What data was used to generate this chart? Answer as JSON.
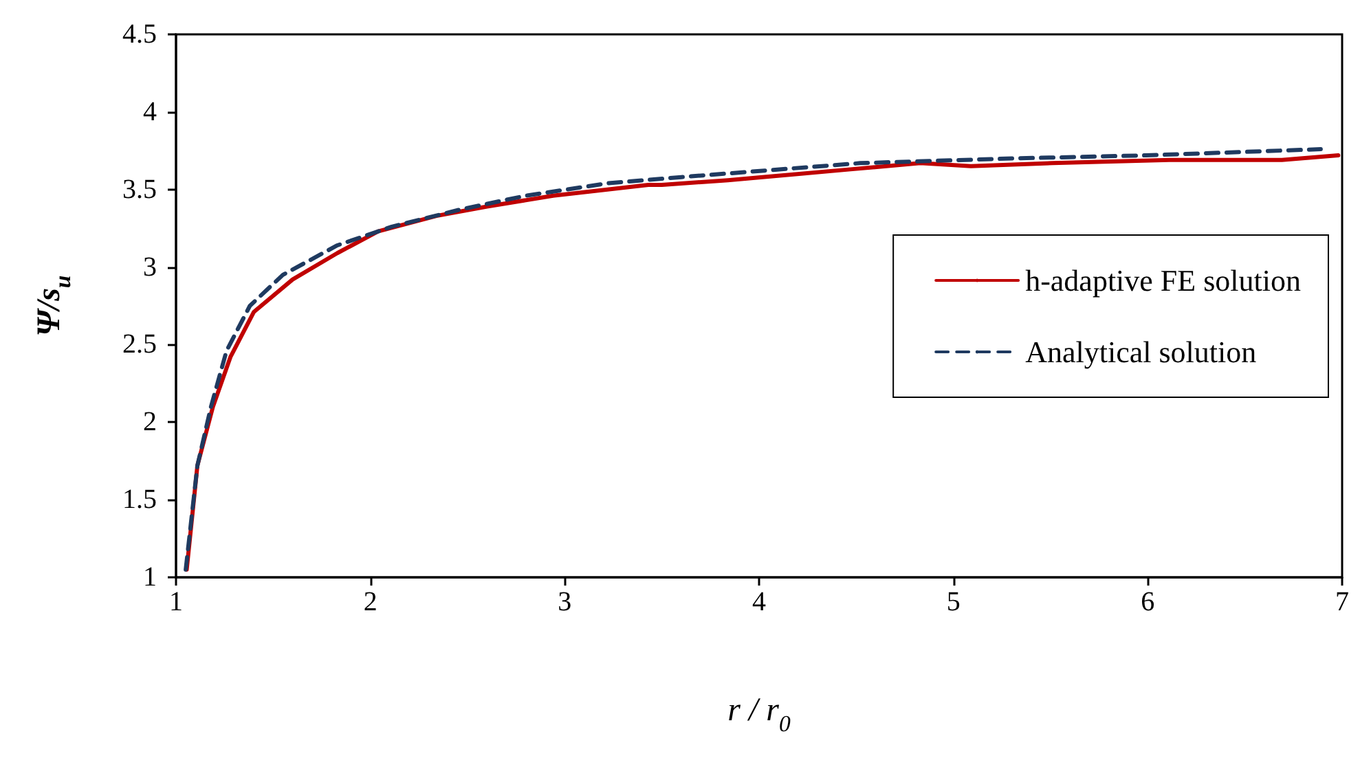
{
  "chart_data": {
    "type": "line",
    "xlabel": "r / r$_{0}$",
    "ylabel": "Ψ/s$_{u}$",
    "xlim": [
      1,
      7
    ],
    "xticks": [
      1,
      2,
      3,
      4,
      5,
      6,
      7
    ],
    "ylim": [
      1,
      4.5
    ],
    "yticks": [
      1,
      1.5,
      2,
      2.5,
      3,
      3.5,
      4,
      4.5
    ],
    "grid": false,
    "legend": "right",
    "marker": "none",
    "series": [
      {
        "name": "h-adaptive FE solution",
        "color": "#c00000",
        "line_style": "solid",
        "x": [
          1.055,
          1.11,
          1.19,
          1.28,
          1.4,
          1.6,
          1.83,
          2.04,
          2.34,
          2.6,
          2.94,
          3.43,
          3.5,
          3.84,
          4.47,
          4.83,
          5.09,
          5.51,
          6.11,
          6.69,
          6.98
        ],
        "values": [
          1.05,
          1.72,
          2.1,
          2.42,
          2.71,
          2.92,
          3.09,
          3.23,
          3.33,
          3.39,
          3.46,
          3.53,
          3.53,
          3.56,
          3.63,
          3.67,
          3.65,
          3.67,
          3.69,
          3.69,
          3.72
        ]
      },
      {
        "name": "Analytical solution",
        "color": "#1f3a60",
        "line_style": "dashed",
        "x": [
          1.05,
          1.11,
          1.18,
          1.26,
          1.38,
          1.55,
          1.83,
          2.11,
          2.46,
          2.8,
          3.22,
          3.6,
          4.52,
          5.3,
          5.99,
          6.89
        ],
        "values": [
          1.05,
          1.72,
          2.1,
          2.46,
          2.75,
          2.95,
          3.14,
          3.26,
          3.37,
          3.46,
          3.54,
          3.58,
          3.67,
          3.7,
          3.72,
          3.76
        ]
      }
    ]
  }
}
